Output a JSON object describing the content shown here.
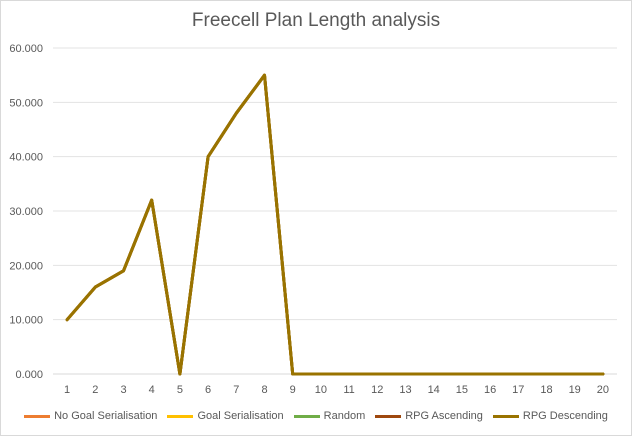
{
  "chart_data": {
    "type": "line",
    "title": "Freecell Plan Length analysis",
    "categories": [
      "1",
      "2",
      "3",
      "4",
      "5",
      "6",
      "7",
      "8",
      "9",
      "10",
      "11",
      "12",
      "13",
      "14",
      "15",
      "16",
      "17",
      "18",
      "19",
      "20"
    ],
    "ylim": [
      0,
      60
    ],
    "yticks": [
      "0.000",
      "10.000",
      "20.000",
      "30.000",
      "40.000",
      "50.000",
      "60.000"
    ],
    "ytick_values": [
      0,
      10,
      20,
      30,
      40,
      50,
      60
    ],
    "grid": true,
    "legend_position": "bottom",
    "series": [
      {
        "name": "No Goal Serialisation",
        "color": "#ed7d31",
        "values": [
          10,
          16,
          19,
          32,
          0,
          40,
          48,
          55,
          0,
          0,
          0,
          0,
          0,
          0,
          0,
          0,
          0,
          0,
          0,
          0
        ]
      },
      {
        "name": "Goal Serialisation",
        "color": "#ffc000",
        "values": [
          10,
          16,
          19,
          32,
          0,
          40,
          48,
          55,
          0,
          0,
          0,
          0,
          0,
          0,
          0,
          0,
          0,
          0,
          0,
          0
        ]
      },
      {
        "name": "Random",
        "color": "#70ad47",
        "values": [
          10,
          16,
          19,
          32,
          0,
          40,
          48,
          55,
          0,
          0,
          0,
          0,
          0,
          0,
          0,
          0,
          0,
          0,
          0,
          0
        ]
      },
      {
        "name": "RPG Ascending",
        "color": "#9e480e",
        "values": [
          10,
          16,
          19,
          32,
          0,
          40,
          48,
          55,
          0,
          0,
          0,
          0,
          0,
          0,
          0,
          0,
          0,
          0,
          0,
          0
        ]
      },
      {
        "name": "RPG Descending",
        "color": "#997300",
        "values": [
          10,
          16,
          19,
          32,
          0,
          40,
          48,
          55,
          0,
          0,
          0,
          0,
          0,
          0,
          0,
          0,
          0,
          0,
          0,
          0
        ]
      }
    ]
  }
}
